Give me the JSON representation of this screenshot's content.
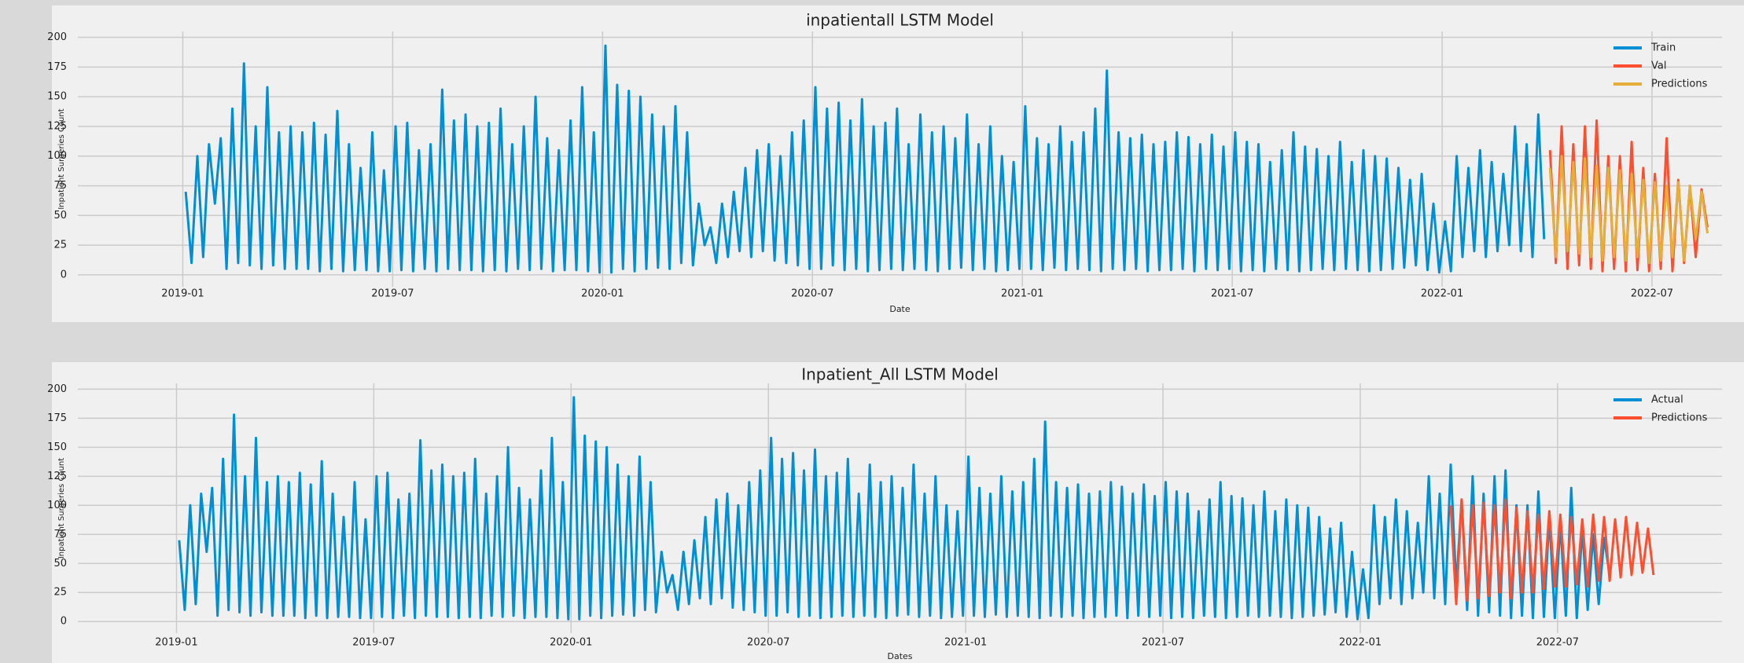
{
  "chart_data": [
    {
      "type": "line",
      "title": "inpatientall LSTM Model",
      "xlabel": "Date",
      "ylabel": "Inpatient Surgeries Count",
      "x": [
        "2019-01",
        "2019-02",
        "2019-03",
        "2019-04",
        "2019-05",
        "2019-06",
        "2019-07",
        "2019-08",
        "2019-09",
        "2019-10",
        "2019-11",
        "2019-12",
        "2020-01",
        "2020-02",
        "2020-03",
        "2020-04",
        "2020-05",
        "2020-06",
        "2020-07",
        "2020-08",
        "2020-09",
        "2020-10",
        "2020-11",
        "2020-12",
        "2021-01",
        "2021-02",
        "2021-03",
        "2021-04",
        "2021-05",
        "2021-06",
        "2021-07",
        "2021-08",
        "2021-09",
        "2021-10",
        "2021-11",
        "2021-12",
        "2022-01",
        "2022-02",
        "2022-03",
        "2022-04",
        "2022-05",
        "2022-06",
        "2022-07",
        "2022-08"
      ],
      "xlim": [
        "2018-10",
        "2022-09"
      ],
      "xticks": [
        "2019-01",
        "2019-07",
        "2020-01",
        "2020-07",
        "2021-01",
        "2021-07",
        "2022-01",
        "2022-07"
      ],
      "ylim": [
        -10,
        205
      ],
      "yticks": [
        0,
        25,
        50,
        75,
        100,
        125,
        150,
        175,
        200
      ],
      "grid": true,
      "legend": "upper right",
      "series": [
        {
          "name": "Train",
          "color": "#008fd5",
          "values": [
            [
              70,
              10,
              100,
              15,
              110,
              60
            ],
            [
              115,
              5,
              140,
              10,
              178,
              8
            ],
            [
              125,
              5,
              158,
              8,
              120,
              5
            ],
            [
              125,
              5,
              120,
              5,
              128,
              3
            ],
            [
              118,
              5,
              138,
              3,
              110,
              4
            ],
            [
              90,
              4,
              120,
              3,
              88,
              3
            ],
            [
              125,
              4,
              128,
              3,
              105,
              5
            ],
            [
              110,
              3,
              156,
              5,
              130,
              4
            ],
            [
              135,
              4,
              125,
              3,
              128,
              4
            ],
            [
              140,
              3,
              110,
              5,
              125,
              4
            ],
            [
              150,
              5,
              115,
              3,
              105,
              4
            ],
            [
              130,
              4,
              158,
              3,
              120,
              2
            ],
            [
              193,
              2,
              160,
              5,
              155,
              3
            ],
            [
              150,
              5,
              135,
              6,
              125,
              5
            ],
            [
              142,
              10,
              120,
              8,
              60,
              25
            ],
            [
              40,
              10,
              60,
              15,
              70,
              20
            ],
            [
              90,
              15,
              105,
              20,
              110,
              12
            ],
            [
              100,
              10,
              120,
              8,
              130,
              5
            ],
            [
              158,
              5,
              140,
              8,
              145,
              4
            ],
            [
              130,
              5,
              148,
              3,
              125,
              4
            ],
            [
              128,
              5,
              140,
              4,
              110,
              5
            ],
            [
              135,
              4,
              120,
              3,
              125,
              5
            ],
            [
              115,
              6,
              135,
              4,
              110,
              5
            ],
            [
              125,
              3,
              100,
              4,
              95,
              5
            ],
            [
              142,
              5,
              115,
              4,
              110,
              6
            ],
            [
              125,
              4,
              112,
              5,
              120,
              4
            ],
            [
              140,
              3,
              172,
              5,
              120,
              4
            ],
            [
              115,
              5,
              118,
              3,
              110,
              4
            ],
            [
              112,
              4,
              120,
              5,
              116,
              3
            ],
            [
              110,
              5,
              118,
              4,
              108,
              5
            ],
            [
              120,
              3,
              112,
              4,
              110,
              3
            ],
            [
              95,
              5,
              105,
              4,
              120,
              3
            ],
            [
              108,
              4,
              106,
              5,
              100,
              4
            ],
            [
              112,
              5,
              95,
              4,
              105,
              3
            ],
            [
              100,
              4,
              98,
              5,
              90,
              6
            ],
            [
              80,
              8,
              85,
              4,
              60,
              2
            ],
            [
              45,
              3,
              100,
              15,
              90,
              20
            ],
            [
              105,
              15,
              95,
              20,
              85,
              25
            ],
            [
              125,
              20,
              110,
              15,
              135,
              30
            ],
            null,
            null,
            null,
            null,
            null
          ]
        },
        {
          "name": "Val",
          "color": "#fc4f30",
          "values": [
            null,
            null,
            null,
            null,
            null,
            null,
            null,
            null,
            null,
            null,
            null,
            null,
            null,
            null,
            null,
            null,
            null,
            null,
            null,
            null,
            null,
            null,
            null,
            null,
            null,
            null,
            null,
            null,
            null,
            null,
            null,
            null,
            null,
            null,
            null,
            null,
            null,
            null,
            null,
            [
              105,
              10,
              125,
              5,
              110,
              8
            ],
            [
              125,
              5,
              130,
              3,
              100,
              5
            ],
            [
              100,
              3,
              112,
              4,
              90,
              3
            ],
            [
              85,
              5,
              115,
              3,
              80,
              10
            ],
            [
              75,
              15,
              72,
              40,
              null,
              null
            ]
          ]
        },
        {
          "name": "Predictions",
          "color": "#e5ae38",
          "values": [
            null,
            null,
            null,
            null,
            null,
            null,
            null,
            null,
            null,
            null,
            null,
            null,
            null,
            null,
            null,
            null,
            null,
            null,
            null,
            null,
            null,
            null,
            null,
            null,
            null,
            null,
            null,
            null,
            null,
            null,
            null,
            null,
            null,
            null,
            null,
            null,
            null,
            null,
            null,
            [
              90,
              15,
              100,
              20,
              95,
              18
            ],
            [
              98,
              15,
              92,
              12,
              90,
              15
            ],
            [
              88,
              12,
              85,
              15,
              80,
              10
            ],
            [
              78,
              12,
              75,
              15,
              78,
              12
            ],
            [
              75,
              30,
              70,
              35,
              null,
              null
            ]
          ]
        }
      ]
    },
    {
      "type": "line",
      "title": "Inpatient_All LSTM Model",
      "xlabel": "Dates",
      "ylabel": "Inpatient Surgeries Count",
      "x": [
        "2019-01",
        "2019-02",
        "2019-03",
        "2019-04",
        "2019-05",
        "2019-06",
        "2019-07",
        "2019-08",
        "2019-09",
        "2019-10",
        "2019-11",
        "2019-12",
        "2020-01",
        "2020-02",
        "2020-03",
        "2020-04",
        "2020-05",
        "2020-06",
        "2020-07",
        "2020-08",
        "2020-09",
        "2020-10",
        "2020-11",
        "2020-12",
        "2021-01",
        "2021-02",
        "2021-03",
        "2021-04",
        "2021-05",
        "2021-06",
        "2021-07",
        "2021-08",
        "2021-09",
        "2021-10",
        "2021-11",
        "2021-12",
        "2022-01",
        "2022-02",
        "2022-03",
        "2022-04",
        "2022-05",
        "2022-06",
        "2022-07",
        "2022-08",
        "2022-09"
      ],
      "xlim": [
        "2018-10",
        "2022-12"
      ],
      "xticks": [
        "2019-01",
        "2019-07",
        "2020-01",
        "2020-07",
        "2021-01",
        "2021-07",
        "2022-01",
        "2022-07"
      ],
      "ylim": [
        -10,
        205
      ],
      "yticks": [
        0,
        25,
        50,
        75,
        100,
        125,
        150,
        175,
        200
      ],
      "grid": true,
      "legend": "upper right",
      "series": [
        {
          "name": "Actual",
          "color": "#008fd5",
          "values": [
            [
              70,
              10,
              100,
              15,
              110,
              60
            ],
            [
              115,
              5,
              140,
              10,
              178,
              8
            ],
            [
              125,
              5,
              158,
              8,
              120,
              5
            ],
            [
              125,
              5,
              120,
              5,
              128,
              3
            ],
            [
              118,
              5,
              138,
              3,
              110,
              4
            ],
            [
              90,
              4,
              120,
              3,
              88,
              3
            ],
            [
              125,
              4,
              128,
              3,
              105,
              5
            ],
            [
              110,
              3,
              156,
              5,
              130,
              4
            ],
            [
              135,
              4,
              125,
              3,
              128,
              4
            ],
            [
              140,
              3,
              110,
              5,
              125,
              4
            ],
            [
              150,
              5,
              115,
              3,
              105,
              4
            ],
            [
              130,
              4,
              158,
              3,
              120,
              2
            ],
            [
              193,
              2,
              160,
              5,
              155,
              3
            ],
            [
              150,
              5,
              135,
              6,
              125,
              5
            ],
            [
              142,
              10,
              120,
              8,
              60,
              25
            ],
            [
              40,
              10,
              60,
              15,
              70,
              20
            ],
            [
              90,
              15,
              105,
              20,
              110,
              12
            ],
            [
              100,
              10,
              120,
              8,
              130,
              5
            ],
            [
              158,
              5,
              140,
              8,
              145,
              4
            ],
            [
              130,
              5,
              148,
              3,
              125,
              4
            ],
            [
              128,
              5,
              140,
              4,
              110,
              5
            ],
            [
              135,
              4,
              120,
              3,
              125,
              5
            ],
            [
              115,
              6,
              135,
              4,
              110,
              5
            ],
            [
              125,
              3,
              100,
              4,
              95,
              5
            ],
            [
              142,
              5,
              115,
              4,
              110,
              6
            ],
            [
              125,
              4,
              112,
              5,
              120,
              4
            ],
            [
              140,
              3,
              172,
              5,
              120,
              4
            ],
            [
              115,
              5,
              118,
              3,
              110,
              4
            ],
            [
              112,
              4,
              120,
              5,
              116,
              3
            ],
            [
              110,
              5,
              118,
              4,
              108,
              5
            ],
            [
              120,
              3,
              112,
              4,
              110,
              3
            ],
            [
              95,
              5,
              105,
              4,
              120,
              3
            ],
            [
              108,
              4,
              106,
              5,
              100,
              4
            ],
            [
              112,
              5,
              95,
              4,
              105,
              3
            ],
            [
              100,
              4,
              98,
              5,
              90,
              6
            ],
            [
              80,
              8,
              85,
              4,
              60,
              2
            ],
            [
              45,
              3,
              100,
              15,
              90,
              20
            ],
            [
              105,
              15,
              95,
              20,
              85,
              25
            ],
            [
              125,
              20,
              110,
              15,
              135,
              30
            ],
            [
              105,
              10,
              125,
              5,
              110,
              8
            ],
            [
              125,
              5,
              130,
              3,
              100,
              5
            ],
            [
              100,
              3,
              112,
              4,
              90,
              3
            ],
            [
              85,
              5,
              115,
              3,
              80,
              10
            ],
            [
              75,
              15,
              72,
              40,
              null,
              null
            ],
            null
          ]
        },
        {
          "name": "Predictions",
          "color": "#fc4f30",
          "values": [
            null,
            null,
            null,
            null,
            null,
            null,
            null,
            null,
            null,
            null,
            null,
            null,
            null,
            null,
            null,
            null,
            null,
            null,
            null,
            null,
            null,
            null,
            null,
            null,
            null,
            null,
            null,
            null,
            null,
            null,
            null,
            null,
            null,
            null,
            null,
            null,
            null,
            null,
            [
              null,
              null,
              null,
              null,
              100,
              15
            ],
            [
              105,
              18,
              100,
              20,
              102,
              22
            ],
            [
              100,
              25,
              105,
              20,
              98,
              25
            ],
            [
              95,
              25,
              92,
              28,
              95,
              30
            ],
            [
              92,
              30,
              90,
              32,
              88,
              30
            ],
            [
              92,
              35,
              90,
              35,
              88,
              38
            ],
            [
              90,
              40,
              85,
              42,
              80,
              40
            ]
          ]
        }
      ]
    }
  ]
}
